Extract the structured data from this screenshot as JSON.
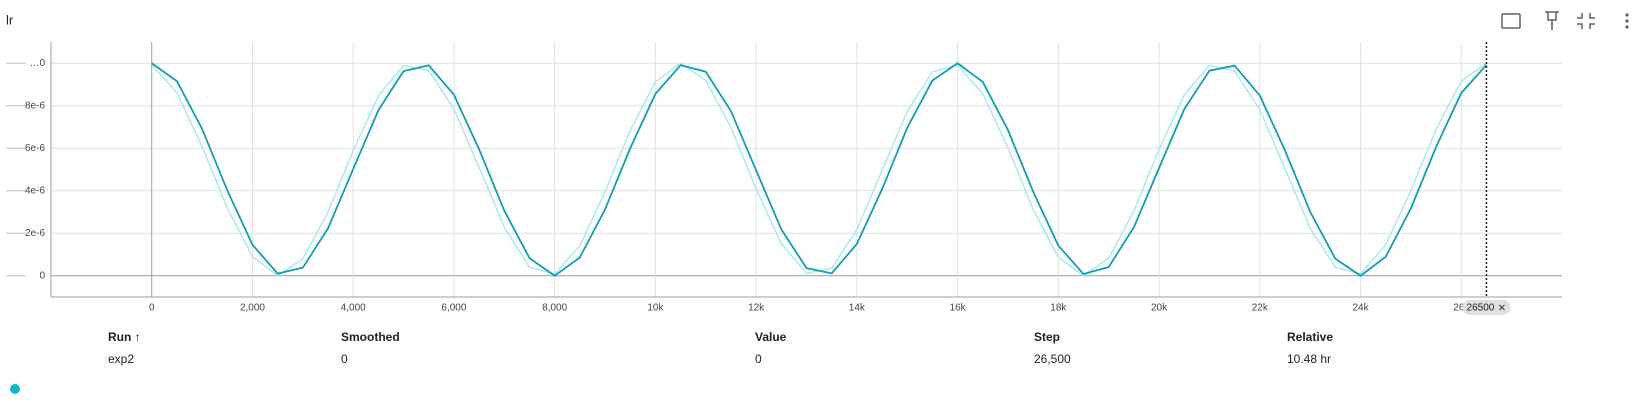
{
  "header": {
    "title": "lr"
  },
  "chart_data": {
    "type": "line",
    "x": [
      0,
      500,
      1000,
      1500,
      2000,
      2500,
      3000,
      3500,
      4000,
      4500,
      5000,
      5500,
      6000,
      6500,
      7000,
      7500,
      8000,
      8500,
      9000,
      9500,
      10000,
      10500,
      11000,
      11500,
      12000,
      12500,
      13000,
      13500,
      14000,
      14500,
      15000,
      15500,
      16000,
      16500,
      17000,
      17500,
      18000,
      18500,
      19000,
      19500,
      20000,
      20500,
      21000,
      21500,
      22000,
      22500,
      23000,
      23500,
      24000,
      24500,
      25000,
      25500,
      26000,
      26500
    ],
    "series": [
      {
        "name": "exp2",
        "color": "#0f9fb3",
        "values": [
          1e-05,
          9.16e-06,
          6.91e-06,
          4.02e-06,
          1.46e-06,
          1e-07,
          3.8e-07,
          2.23e-06,
          5.02e-06,
          7.79e-06,
          9.63e-06,
          9.9e-06,
          8.52e-06,
          5.95e-06,
          3.06e-06,
          8.3e-07,
          0,
          8.6e-07,
          3.12e-06,
          6e-06,
          8.56e-06,
          9.91e-06,
          9.6e-06,
          7.75e-06,
          4.96e-06,
          2.18e-06,
          3.6e-07,
          1.1e-07,
          1.5e-06,
          4.07e-06,
          6.96e-06,
          9.19e-06,
          1e-05,
          9.12e-06,
          6.86e-06,
          3.96e-06,
          1.42e-06,
          8e-08,
          4.1e-07,
          2.28e-06,
          5.07e-06,
          7.84e-06,
          9.65e-06,
          9.89e-06,
          8.48e-06,
          5.9e-06,
          3.01e-06,
          8e-07,
          0,
          8.9e-07,
          3.17e-06,
          6.06e-06,
          8.6e-06,
          9.92e-06
        ]
      },
      {
        "color": "#a6e8ee",
        "values": [
          9.92e-06,
          8.61e-06,
          6.08e-06,
          3.18e-06,
          9e-07,
          0,
          7.9e-07,
          3e-06,
          5.89e-06,
          8.47e-06,
          9.89e-06,
          9.65e-06,
          7.85e-06,
          5.09e-06,
          2.29e-06,
          4.1e-07,
          8e-08,
          1.41e-06,
          3.95e-06,
          6.84e-06,
          9.12e-06,
          1e-05,
          9.19e-06,
          6.98e-06,
          4.09e-06,
          1.51e-06,
          1.1e-07,
          3.6e-07,
          2.17e-06,
          4.94e-06,
          7.73e-06,
          9.6e-06,
          9.91e-06,
          8.57e-06,
          6.02e-06,
          3.13e-06,
          8.7e-07,
          0,
          8.2e-07,
          3.05e-06,
          5.94e-06,
          8.51e-06,
          9.9e-06,
          9.63e-06,
          7.81e-06,
          5.03e-06,
          2.25e-06,
          3.9e-07,
          9e-08,
          1.45e-06,
          4e-06,
          6.89e-06,
          9.15e-06,
          1e-05
        ]
      }
    ],
    "xlim": [
      -2000,
      28000
    ],
    "xticks": [
      0,
      {
        "value": 2000,
        "label": "2,000"
      },
      {
        "value": 4000,
        "label": "4,000"
      },
      {
        "value": 6000,
        "label": "6,000"
      },
      {
        "value": 8000,
        "label": "8,000"
      },
      {
        "value": 10000,
        "label": "10k"
      },
      {
        "value": 12000,
        "label": "12k"
      },
      {
        "value": 14000,
        "label": "14k"
      },
      {
        "value": 16000,
        "label": "16k"
      },
      {
        "value": 18000,
        "label": "18k"
      },
      {
        "value": 20000,
        "label": "20k"
      },
      {
        "value": 22000,
        "label": "22k"
      },
      {
        "value": 24000,
        "label": "24k"
      },
      {
        "value": 26000,
        "label": "26k"
      }
    ],
    "ylim": [
      -1e-06,
      1.1e-05
    ],
    "yticks": [
      0,
      {
        "value": 2e-06,
        "label": "2e-6"
      },
      {
        "value": 4e-06,
        "label": "4e-6"
      },
      {
        "value": 6e-06,
        "label": "6e-6"
      },
      {
        "value": 8e-06,
        "label": "8e-6"
      },
      {
        "value": 1e-05,
        "label": "…0"
      }
    ],
    "grid": true,
    "hover_step": 26500
  },
  "table": {
    "headers": [
      "Run ↑",
      "Smoothed",
      "Value",
      "Step",
      "Relative"
    ],
    "rows": [
      [
        "exp2",
        "0",
        "0",
        "26,500",
        "10.48 hr"
      ]
    ]
  }
}
